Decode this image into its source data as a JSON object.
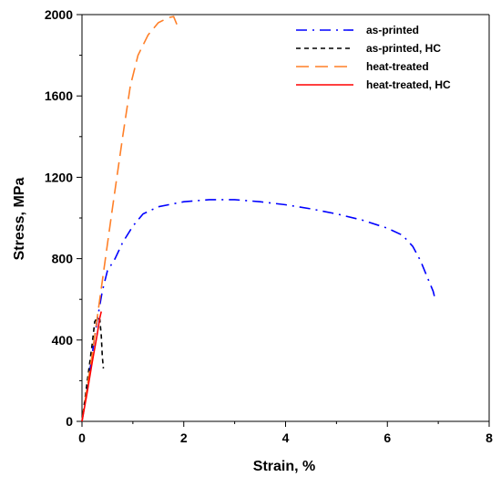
{
  "chart_data": {
    "type": "line",
    "xlabel": "Strain, %",
    "ylabel": "Stress, MPa",
    "xlim": [
      0,
      8
    ],
    "ylim": [
      0,
      2000
    ],
    "xticks": [
      0,
      2,
      4,
      6,
      8
    ],
    "yticks": [
      0,
      400,
      800,
      1200,
      1600,
      2000
    ],
    "grid": false,
    "legend_position": "top-right",
    "series": [
      {
        "name": "as-printed",
        "color": "#0000ff",
        "dash": "dash-dot",
        "points": [
          [
            0,
            0
          ],
          [
            0.1,
            150
          ],
          [
            0.2,
            330
          ],
          [
            0.3,
            500
          ],
          [
            0.4,
            640
          ],
          [
            0.5,
            740
          ],
          [
            0.65,
            800
          ],
          [
            0.8,
            880
          ],
          [
            1.0,
            960
          ],
          [
            1.2,
            1020
          ],
          [
            1.5,
            1055
          ],
          [
            2.0,
            1080
          ],
          [
            2.5,
            1090
          ],
          [
            3.0,
            1090
          ],
          [
            3.5,
            1080
          ],
          [
            4.0,
            1065
          ],
          [
            4.5,
            1045
          ],
          [
            5.0,
            1020
          ],
          [
            5.5,
            990
          ],
          [
            6.0,
            950
          ],
          [
            6.3,
            915
          ],
          [
            6.5,
            860
          ],
          [
            6.65,
            790
          ],
          [
            6.8,
            700
          ],
          [
            6.9,
            640
          ],
          [
            6.95,
            590
          ]
        ]
      },
      {
        "name": "as-printed, HC",
        "color": "#000000",
        "dash": "dash",
        "points": [
          [
            0,
            0
          ],
          [
            0.1,
            190
          ],
          [
            0.2,
            380
          ],
          [
            0.25,
            490
          ],
          [
            0.3,
            510
          ],
          [
            0.35,
            500
          ],
          [
            0.38,
            420
          ],
          [
            0.4,
            320
          ],
          [
            0.42,
            260
          ]
        ]
      },
      {
        "name": "heat-treated",
        "color": "#ff7f27",
        "dash": "long-dash",
        "points": [
          [
            0,
            0
          ],
          [
            0.2,
            330
          ],
          [
            0.4,
            690
          ],
          [
            0.6,
            1050
          ],
          [
            0.8,
            1400
          ],
          [
            0.95,
            1650
          ],
          [
            1.1,
            1800
          ],
          [
            1.3,
            1900
          ],
          [
            1.5,
            1960
          ],
          [
            1.7,
            1985
          ],
          [
            1.8,
            1990
          ],
          [
            1.85,
            1960
          ],
          [
            1.9,
            1930
          ]
        ]
      },
      {
        "name": "heat-treated, HC",
        "color": "#ff0000",
        "dash": "solid",
        "points": [
          [
            0,
            0
          ],
          [
            0.1,
            140
          ],
          [
            0.2,
            290
          ],
          [
            0.3,
            430
          ],
          [
            0.35,
            510
          ],
          [
            0.38,
            540
          ]
        ]
      }
    ]
  }
}
